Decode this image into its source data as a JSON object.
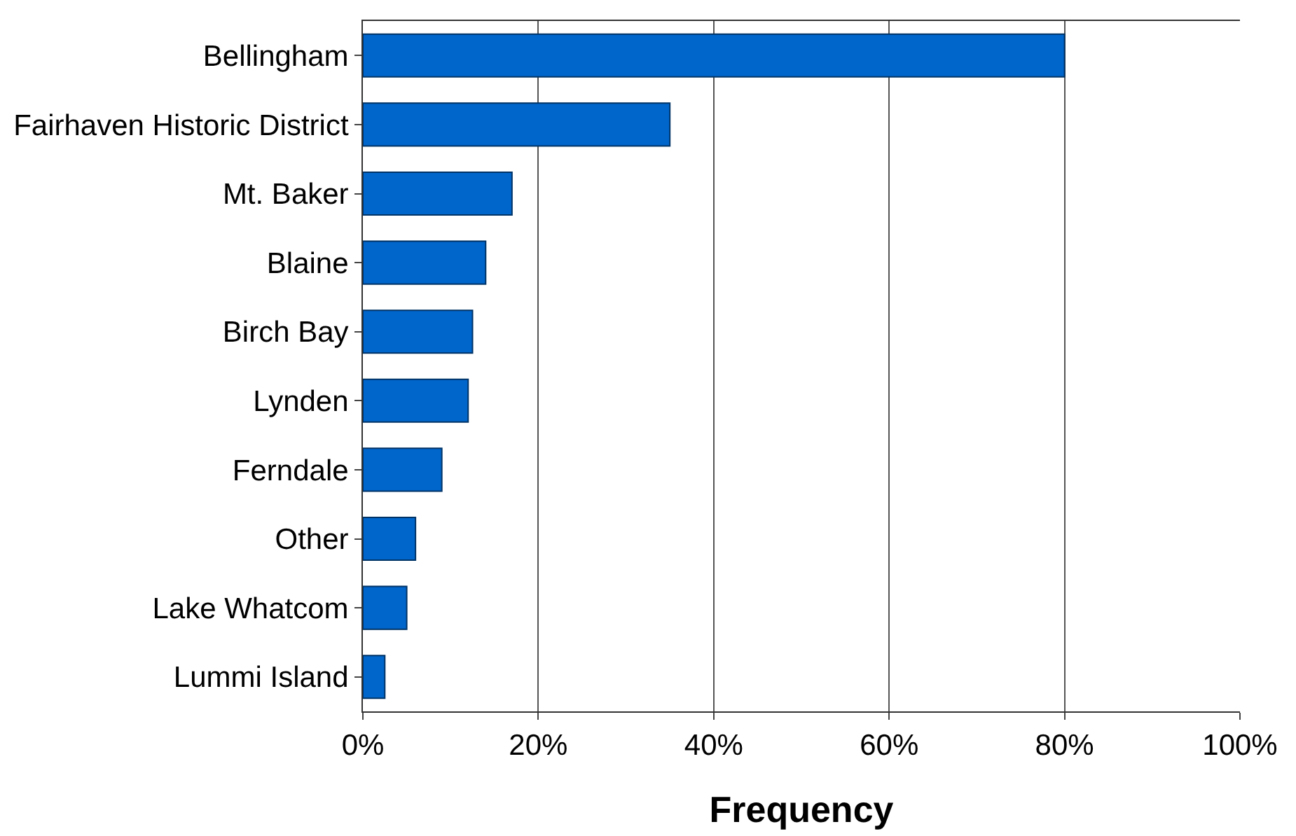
{
  "chart_data": {
    "type": "bar",
    "orientation": "horizontal",
    "xlabel": "Frequency",
    "categories": [
      "Bellingham",
      "Fairhaven Historic District",
      "Mt. Baker",
      "Blaine",
      "Birch Bay",
      "Lynden",
      "Ferndale",
      "Other",
      "Lake Whatcom",
      "Lummi Island"
    ],
    "values": [
      80,
      35,
      17,
      14,
      12.5,
      12,
      9,
      6,
      5,
      2.5
    ],
    "color": "#0066cc",
    "xlim": [
      0,
      100
    ],
    "xticks": [
      {
        "value": 0,
        "label": "0%"
      },
      {
        "value": 20,
        "label": "20%"
      },
      {
        "value": 40,
        "label": "40%"
      },
      {
        "value": 60,
        "label": "60%"
      },
      {
        "value": 80,
        "label": "80%"
      },
      {
        "value": 100,
        "label": "100%"
      }
    ],
    "grid": "x",
    "legend": false
  }
}
